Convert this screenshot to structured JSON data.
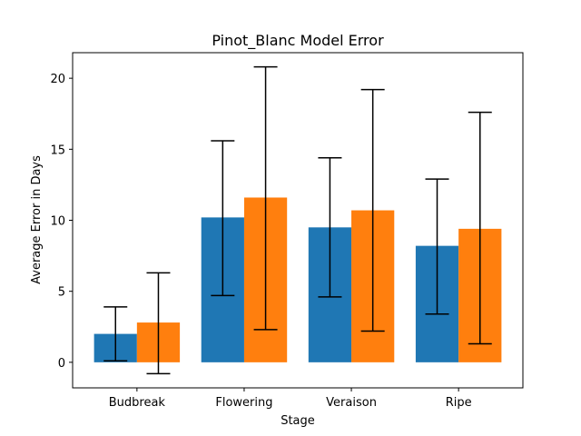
{
  "chart_data": {
    "type": "bar",
    "title": "Pinot_Blanc Model Error",
    "xlabel": "Stage",
    "ylabel": "Average Error in Days",
    "categories": [
      "Budbreak",
      "Flowering",
      "Veraison",
      "Ripe"
    ],
    "ylim": [
      -1.8,
      21.8
    ],
    "yticks": [
      0,
      5,
      10,
      15,
      20
    ],
    "grid": false,
    "legend": "none",
    "series": [
      {
        "color": "#1f77b4",
        "values": [
          2.0,
          10.2,
          9.5,
          8.2
        ],
        "error_low": [
          0.1,
          4.7,
          4.6,
          3.4
        ],
        "error_high": [
          3.9,
          15.6,
          14.4,
          12.9
        ]
      },
      {
        "color": "#ff7f0e",
        "values": [
          2.8,
          11.6,
          10.7,
          9.4
        ],
        "error_low": [
          -0.8,
          2.3,
          2.2,
          1.3
        ],
        "error_high": [
          6.3,
          20.8,
          19.2,
          17.6
        ]
      }
    ]
  }
}
